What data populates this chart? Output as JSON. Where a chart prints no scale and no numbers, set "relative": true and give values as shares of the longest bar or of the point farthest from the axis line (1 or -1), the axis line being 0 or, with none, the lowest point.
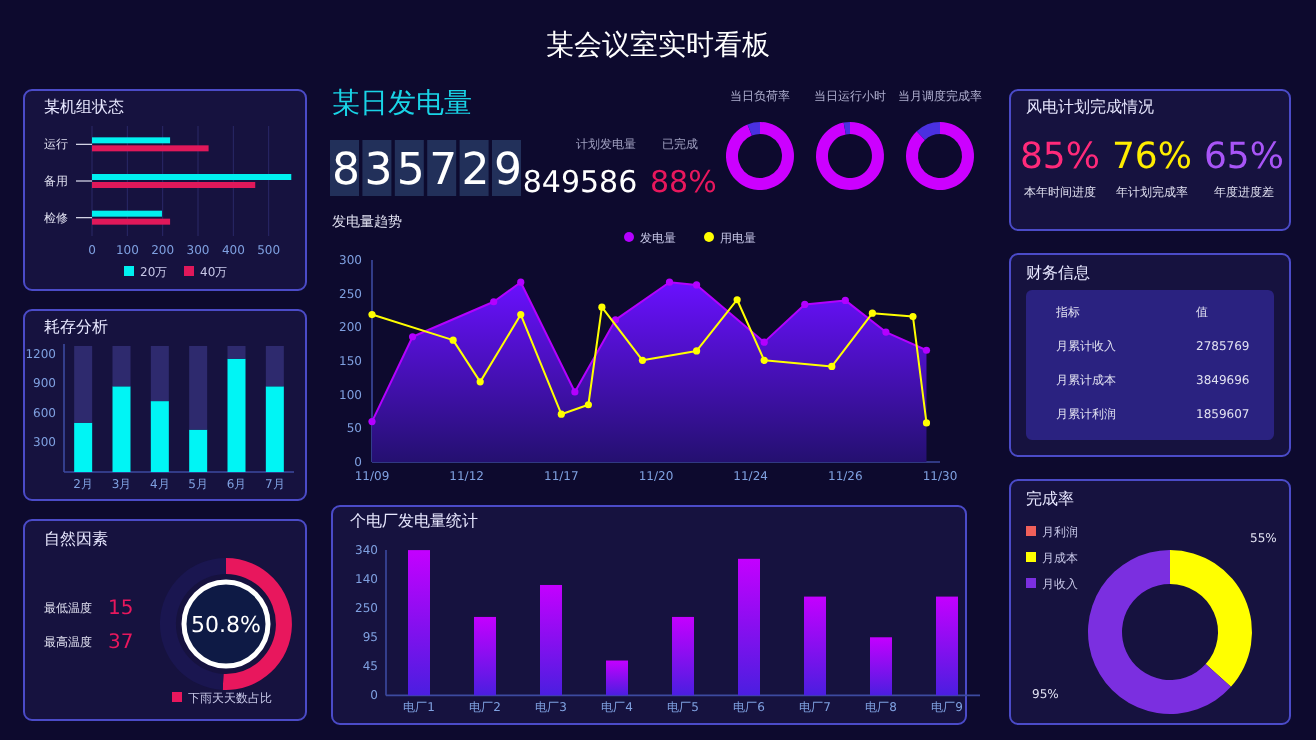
{
  "chart_data": [
    {
      "type": "other",
      "title": "某会议室实时看板"
    },
    {
      "type": "bar",
      "title": "某机组状态",
      "orientation": "horizontal",
      "categories": [
        "运行",
        "备用",
        "检修"
      ],
      "series": [
        {
          "name": "20万",
          "color": "#00f0f0",
          "values": [
            221,
            564,
            198
          ]
        },
        {
          "name": "40万",
          "color": "#e0185a",
          "values": [
            330,
            462,
            221
          ]
        }
      ],
      "xlim": [
        0,
        570
      ],
      "xticks": [
        0,
        100,
        200,
        300,
        400,
        500
      ],
      "grid": "x",
      "legend": "bottom"
    },
    {
      "type": "other",
      "title": "某日发电量",
      "annotations": [
        "835729",
        "计划发电量",
        "849586",
        "已完成",
        "88%"
      ]
    },
    {
      "type": "donut",
      "title": "当日负荷率",
      "categories": [
        null,
        null
      ],
      "values": [
        94,
        6
      ],
      "colors": [
        "#cc00ff",
        "#4a30e0"
      ]
    },
    {
      "type": "donut",
      "title": "当日运行小时",
      "categories": [
        null,
        null
      ],
      "values": [
        97,
        3
      ],
      "colors": [
        "#cc00ff",
        "#4a30e0"
      ]
    },
    {
      "type": "donut",
      "title": "当月调度完成率",
      "categories": [
        null,
        null
      ],
      "values": [
        88,
        12
      ],
      "colors": [
        "#cc00ff",
        "#4a30e0"
      ]
    },
    {
      "type": "other",
      "title": "风电计划完成情况",
      "annotations": [
        "85%",
        "本年时间进度",
        "76%",
        "年计划完成率",
        "65%",
        "年度进度差"
      ]
    },
    {
      "type": "bar",
      "title": "耗存分析",
      "stacked": true,
      "categories": [
        "2月",
        "3月",
        "4月",
        "5月",
        "6月",
        "7月"
      ],
      "series": [
        {
          "color": "#00f5f5",
          "values": [
            500,
            870,
            720,
            430,
            1150,
            870
          ]
        },
        {
          "color": "#2e2a6e",
          "values": [
            780,
            410,
            560,
            850,
            130,
            410
          ]
        }
      ],
      "ylim": [
        0,
        1300
      ],
      "yticks": [
        300,
        600,
        900,
        1200
      ]
    },
    {
      "type": "line",
      "title": "发电量趋势",
      "categories": [
        "11/09",
        null,
        null,
        null,
        null,
        null,
        null,
        "11/12",
        null,
        null,
        null,
        null,
        null,
        null,
        "11/17",
        null,
        null,
        null,
        null,
        null,
        null,
        "11/20",
        null,
        null,
        null,
        null,
        null,
        null,
        "11/24",
        null,
        null,
        null,
        null,
        null,
        null,
        "11/26",
        null,
        null,
        null,
        null,
        null,
        null,
        "11/30"
      ],
      "ylim": [
        0,
        300
      ],
      "yticks": [
        0,
        50,
        100,
        150,
        200,
        250,
        300
      ],
      "legend": "top",
      "marker": "circle",
      "series": [
        {
          "name": "发电量",
          "type": "area",
          "color": "#b400ff",
          "values": [
            60,
            null,
            null,
            186,
            null,
            null,
            null,
            null,
            null,
            238,
            null,
            267,
            null,
            null,
            null,
            104,
            null,
            null,
            211,
            null,
            null,
            null,
            267,
            null,
            263,
            null,
            null,
            null,
            null,
            178,
            null,
            null,
            234,
            null,
            null,
            240,
            null,
            null,
            193,
            null,
            null,
            166,
            null
          ]
        },
        {
          "name": "用电量",
          "color": "#ffff00",
          "values": [
            219,
            null,
            null,
            null,
            null,
            null,
            181,
            null,
            119,
            null,
            null,
            219,
            null,
            null,
            71,
            null,
            85,
            230,
            null,
            null,
            151,
            null,
            null,
            null,
            165,
            null,
            null,
            241,
            null,
            151,
            null,
            null,
            null,
            null,
            142,
            null,
            null,
            221,
            null,
            null,
            216,
            58,
            null
          ]
        }
      ]
    },
    {
      "type": "other",
      "title": "财务信息",
      "annotations": [
        "指标",
        "值",
        "月累计收入",
        "2785769",
        "月累计成本",
        "3849696",
        "月累计利润",
        "1859607"
      ]
    },
    {
      "type": "other",
      "title": "自然因素",
      "annotations": [
        "最低温度",
        "15",
        "最高温度",
        "37"
      ]
    },
    {
      "type": "donut",
      "categories": [
        "下雨天天数占比",
        null
      ],
      "values": [
        50.8,
        49.2
      ],
      "colors": [
        "#e8175d",
        "#1a1650"
      ],
      "value_labels": [
        "50.8%",
        null
      ],
      "legend": "bottom"
    },
    {
      "type": "bar",
      "title": "个电厂发电量统计",
      "categories": [
        "电厂1",
        "电厂2",
        "电厂3",
        "电厂4",
        "电厂5",
        "电厂6",
        "电厂7",
        "电厂8",
        "电厂9"
      ],
      "values": [
        1,
        0.54,
        0.76,
        0.24,
        0.54,
        0.94,
        0.68,
        0.4,
        0.68
      ],
      "color": "#c400ff",
      "relative": true,
      "annotations": [
        "0",
        "45",
        "95",
        "250",
        "140",
        "340"
      ]
    },
    {
      "type": "donut",
      "title": "完成率",
      "categories": [
        "月利润",
        "月成本",
        "月收入"
      ],
      "values": [
        null,
        55,
        95
      ],
      "colors": [
        "#f0605a",
        "#ffff00",
        "#7b2fe0"
      ],
      "value_labels": [
        null,
        "55%",
        "95%"
      ],
      "legend": "top left"
    }
  ]
}
